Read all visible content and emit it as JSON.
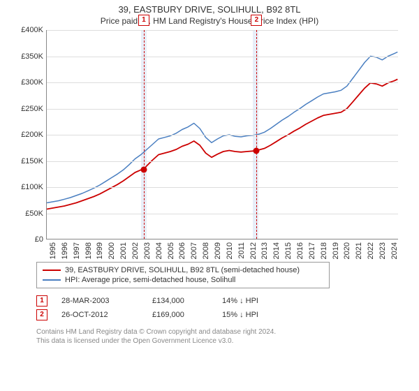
{
  "title": "39, EASTBURY DRIVE, SOLIHULL, B92 8TL",
  "subtitle": "Price paid vs. HM Land Registry's House Price Index (HPI)",
  "chart": {
    "type": "line",
    "background_color": "#ffffff",
    "grid_color": "#dddddd",
    "shade_color": "#e8eef8",
    "x_min": 1995,
    "x_max": 2024.9,
    "x_ticks": [
      1995,
      1996,
      1997,
      1998,
      1999,
      2000,
      2001,
      2002,
      2003,
      2004,
      2005,
      2006,
      2007,
      2008,
      2009,
      2010,
      2011,
      2012,
      2013,
      2014,
      2015,
      2016,
      2017,
      2018,
      2019,
      2020,
      2021,
      2022,
      2023,
      2024
    ],
    "y_min": 0,
    "y_max": 400,
    "y_unit": "£K",
    "y_ticks": [
      0,
      50,
      100,
      150,
      200,
      250,
      300,
      350,
      400
    ],
    "tick_fontsize": 11,
    "shaded_ranges": [
      {
        "start": 2003.0,
        "end": 2003.5
      },
      {
        "start": 2012.5,
        "end": 2013.0
      }
    ],
    "series": [
      {
        "key": "hpi",
        "label": "HPI: Average price, semi-detached house, Solihull",
        "color": "#4a7fc1",
        "line_width": 1.5,
        "points": [
          [
            1995.0,
            70
          ],
          [
            1995.5,
            72
          ],
          [
            1996.0,
            74
          ],
          [
            1996.5,
            77
          ],
          [
            1997.0,
            80
          ],
          [
            1997.5,
            84
          ],
          [
            1998.0,
            88
          ],
          [
            1998.5,
            93
          ],
          [
            1999.0,
            98
          ],
          [
            1999.5,
            104
          ],
          [
            2000.0,
            111
          ],
          [
            2000.5,
            118
          ],
          [
            2001.0,
            125
          ],
          [
            2001.5,
            133
          ],
          [
            2002.0,
            143
          ],
          [
            2002.5,
            154
          ],
          [
            2003.0,
            162
          ],
          [
            2003.5,
            172
          ],
          [
            2004.0,
            182
          ],
          [
            2004.5,
            192
          ],
          [
            2005.0,
            195
          ],
          [
            2005.5,
            198
          ],
          [
            2006.0,
            203
          ],
          [
            2006.5,
            210
          ],
          [
            2007.0,
            215
          ],
          [
            2007.5,
            222
          ],
          [
            2008.0,
            212
          ],
          [
            2008.5,
            195
          ],
          [
            2009.0,
            185
          ],
          [
            2009.5,
            192
          ],
          [
            2010.0,
            198
          ],
          [
            2010.5,
            200
          ],
          [
            2011.0,
            197
          ],
          [
            2011.5,
            196
          ],
          [
            2012.0,
            198
          ],
          [
            2012.5,
            199
          ],
          [
            2013.0,
            201
          ],
          [
            2013.5,
            205
          ],
          [
            2014.0,
            212
          ],
          [
            2014.5,
            220
          ],
          [
            2015.0,
            228
          ],
          [
            2015.5,
            235
          ],
          [
            2016.0,
            243
          ],
          [
            2016.5,
            250
          ],
          [
            2017.0,
            258
          ],
          [
            2017.5,
            265
          ],
          [
            2018.0,
            272
          ],
          [
            2018.5,
            278
          ],
          [
            2019.0,
            280
          ],
          [
            2019.5,
            282
          ],
          [
            2020.0,
            285
          ],
          [
            2020.5,
            293
          ],
          [
            2021.0,
            308
          ],
          [
            2021.5,
            323
          ],
          [
            2022.0,
            338
          ],
          [
            2022.5,
            350
          ],
          [
            2023.0,
            348
          ],
          [
            2023.5,
            343
          ],
          [
            2024.0,
            350
          ],
          [
            2024.5,
            355
          ],
          [
            2024.8,
            358
          ]
        ]
      },
      {
        "key": "property",
        "label": "39, EASTBURY DRIVE, SOLIHULL, B92 8TL (semi-detached house)",
        "color": "#cc0000",
        "line_width": 1.8,
        "points": [
          [
            1995.0,
            58
          ],
          [
            1995.5,
            60
          ],
          [
            1996.0,
            62
          ],
          [
            1996.5,
            64
          ],
          [
            1997.0,
            67
          ],
          [
            1997.5,
            70
          ],
          [
            1998.0,
            74
          ],
          [
            1998.5,
            78
          ],
          [
            1999.0,
            82
          ],
          [
            1999.5,
            87
          ],
          [
            2000.0,
            93
          ],
          [
            2000.5,
            99
          ],
          [
            2001.0,
            105
          ],
          [
            2001.5,
            112
          ],
          [
            2002.0,
            120
          ],
          [
            2002.5,
            128
          ],
          [
            2003.0,
            133
          ],
          [
            2003.24,
            134
          ],
          [
            2003.5,
            141
          ],
          [
            2004.0,
            152
          ],
          [
            2004.5,
            162
          ],
          [
            2005.0,
            165
          ],
          [
            2005.5,
            168
          ],
          [
            2006.0,
            172
          ],
          [
            2006.5,
            178
          ],
          [
            2007.0,
            182
          ],
          [
            2007.5,
            188
          ],
          [
            2008.0,
            180
          ],
          [
            2008.5,
            165
          ],
          [
            2009.0,
            157
          ],
          [
            2009.5,
            163
          ],
          [
            2010.0,
            168
          ],
          [
            2010.5,
            170
          ],
          [
            2011.0,
            168
          ],
          [
            2011.5,
            167
          ],
          [
            2012.0,
            168
          ],
          [
            2012.5,
            169
          ],
          [
            2012.82,
            169
          ],
          [
            2013.0,
            171
          ],
          [
            2013.5,
            174
          ],
          [
            2014.0,
            180
          ],
          [
            2014.5,
            187
          ],
          [
            2015.0,
            194
          ],
          [
            2015.5,
            200
          ],
          [
            2016.0,
            207
          ],
          [
            2016.5,
            213
          ],
          [
            2017.0,
            220
          ],
          [
            2017.5,
            226
          ],
          [
            2018.0,
            232
          ],
          [
            2018.5,
            237
          ],
          [
            2019.0,
            239
          ],
          [
            2019.5,
            241
          ],
          [
            2020.0,
            243
          ],
          [
            2020.5,
            250
          ],
          [
            2021.0,
            263
          ],
          [
            2021.5,
            276
          ],
          [
            2022.0,
            289
          ],
          [
            2022.5,
            299
          ],
          [
            2023.0,
            297
          ],
          [
            2023.5,
            293
          ],
          [
            2024.0,
            299
          ],
          [
            2024.5,
            303
          ],
          [
            2024.8,
            306
          ]
        ]
      }
    ],
    "sale_markers": [
      {
        "idx": "1",
        "x": 2003.24,
        "y": 134,
        "dash_color": "#cc0000"
      },
      {
        "idx": "2",
        "x": 2012.82,
        "y": 169,
        "dash_color": "#cc0000"
      }
    ]
  },
  "legend": {
    "rows": [
      {
        "color": "#cc0000",
        "label": "39, EASTBURY DRIVE, SOLIHULL, B92 8TL (semi-detached house)"
      },
      {
        "color": "#4a7fc1",
        "label": "HPI: Average price, semi-detached house, Solihull"
      }
    ]
  },
  "sales": [
    {
      "idx": "1",
      "date": "28-MAR-2003",
      "price": "£134,000",
      "pct": "14% ↓ HPI"
    },
    {
      "idx": "2",
      "date": "26-OCT-2012",
      "price": "£169,000",
      "pct": "15% ↓ HPI"
    }
  ],
  "footer_line1": "Contains HM Land Registry data © Crown copyright and database right 2024.",
  "footer_line2": "This data is licensed under the Open Government Licence v3.0."
}
